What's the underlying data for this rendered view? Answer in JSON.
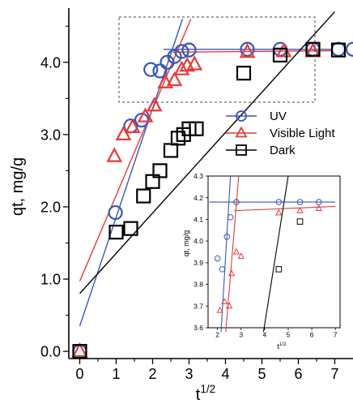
{
  "chart_data": [
    {
      "type": "scatter",
      "title": "",
      "xlabel": "t",
      "xlabel_sup": "1/2",
      "ylabel": "qt, mg/g",
      "xlim": [
        -0.3,
        7.5
      ],
      "ylim": [
        -0.1,
        4.75
      ],
      "xticks": [
        "0",
        "1",
        "2",
        "3",
        "4",
        "5",
        "6",
        "7"
      ],
      "yticks": [
        "0.0",
        "1.0",
        "2.0",
        "3.0",
        "4.0"
      ],
      "legend_position": "right",
      "series": [
        {
          "name": "UV",
          "marker": "circle",
          "color": "#3b55b5",
          "x": [
            0,
            0.98,
            1.4,
            1.7,
            1.95,
            2.2,
            2.4,
            2.6,
            2.8,
            3.0,
            4.6,
            5.5,
            6.4,
            7.1,
            7.5
          ],
          "y": [
            0,
            1.92,
            3.12,
            3.2,
            3.9,
            3.88,
            4.0,
            4.08,
            4.15,
            4.17,
            4.18,
            4.18,
            4.18,
            4.18,
            4.18
          ],
          "fit_lines": [
            {
              "x": [
                0,
                2.82
              ],
              "y": [
                0.35,
                4.6
              ]
            },
            {
              "x": [
                2.3,
                6.9
              ],
              "y": [
                4.18,
                4.18
              ]
            }
          ]
        },
        {
          "name": "Visible Light",
          "marker": "triangle",
          "color": "#e63a3a",
          "x": [
            0,
            0.95,
            1.2,
            1.45,
            1.8,
            2.05,
            2.35,
            2.6,
            2.8,
            2.95,
            3.15,
            4.6,
            5.6,
            6.4
          ],
          "y": [
            0,
            2.7,
            3.0,
            3.1,
            3.25,
            3.4,
            3.72,
            3.75,
            3.9,
            3.95,
            3.97,
            4.14,
            4.15,
            4.15
          ],
          "fit_lines": [
            {
              "x": [
                0,
                3.05
              ],
              "y": [
                0.97,
                4.6
              ]
            },
            {
              "x": [
                2.55,
                6.9
              ],
              "y": [
                4.14,
                4.16
              ]
            }
          ]
        },
        {
          "name": "Dark",
          "marker": "square",
          "color": "#000000",
          "x": [
            0,
            1.0,
            1.4,
            1.75,
            2.0,
            2.2,
            2.5,
            2.7,
            2.85,
            3.0,
            3.2,
            4.5,
            5.5,
            6.4,
            7.1
          ],
          "y": [
            0,
            1.65,
            1.7,
            2.15,
            2.35,
            2.5,
            2.78,
            2.95,
            3.0,
            3.08,
            3.08,
            3.85,
            4.1,
            4.18,
            4.17
          ],
          "fit_lines": [
            {
              "x": [
                0,
                7.0
              ],
              "y": [
                0.8,
                4.7
              ]
            }
          ]
        }
      ]
    },
    {
      "type": "scatter",
      "title": "",
      "xlabel": "t",
      "xlabel_sup": "1/2",
      "ylabel": "qt, mg/g",
      "xlim": [
        1.6,
        7.2
      ],
      "ylim": [
        3.6,
        4.3
      ],
      "xticks": [
        "2",
        "3",
        "4",
        "5",
        "6",
        "7"
      ],
      "yticks": [
        "3.6",
        "3.7",
        "3.8",
        "3.9",
        "4.0",
        "4.1",
        "4.2",
        "4.3"
      ],
      "series": [
        {
          "marker": "circle",
          "color": "#3b55b5",
          "x": [
            2.0,
            2.2,
            2.4,
            2.55,
            2.8,
            4.6,
            5.5,
            6.3
          ],
          "y": [
            3.92,
            3.87,
            4.02,
            4.11,
            4.18,
            4.18,
            4.18,
            4.18
          ],
          "fit_lines": [
            {
              "x": [
                2.15,
                2.55
              ],
              "y": [
                3.58,
                4.3
              ]
            },
            {
              "x": [
                1.65,
                7.0
              ],
              "y": [
                4.18,
                4.18
              ]
            }
          ]
        },
        {
          "marker": "triangle",
          "color": "#e63a3a",
          "x": [
            2.1,
            2.3,
            2.5,
            2.6,
            2.8,
            3.0,
            4.6,
            5.5,
            6.3
          ],
          "y": [
            3.68,
            3.72,
            3.7,
            3.85,
            3.95,
            3.93,
            4.13,
            4.14,
            4.15
          ],
          "fit_lines": [
            {
              "x": [
                2.35,
                2.9
              ],
              "y": [
                3.58,
                4.3
              ]
            },
            {
              "x": [
                2.7,
                7.0
              ],
              "y": [
                4.14,
                4.16
              ]
            }
          ]
        },
        {
          "marker": "square",
          "color": "#000000",
          "x": [
            4.6,
            5.5
          ],
          "y": [
            3.87,
            4.09
          ],
          "fit_lines": [
            {
              "x": [
                3.95,
                5.0
              ],
              "y": [
                3.58,
                4.3
              ]
            }
          ]
        }
      ]
    }
  ]
}
